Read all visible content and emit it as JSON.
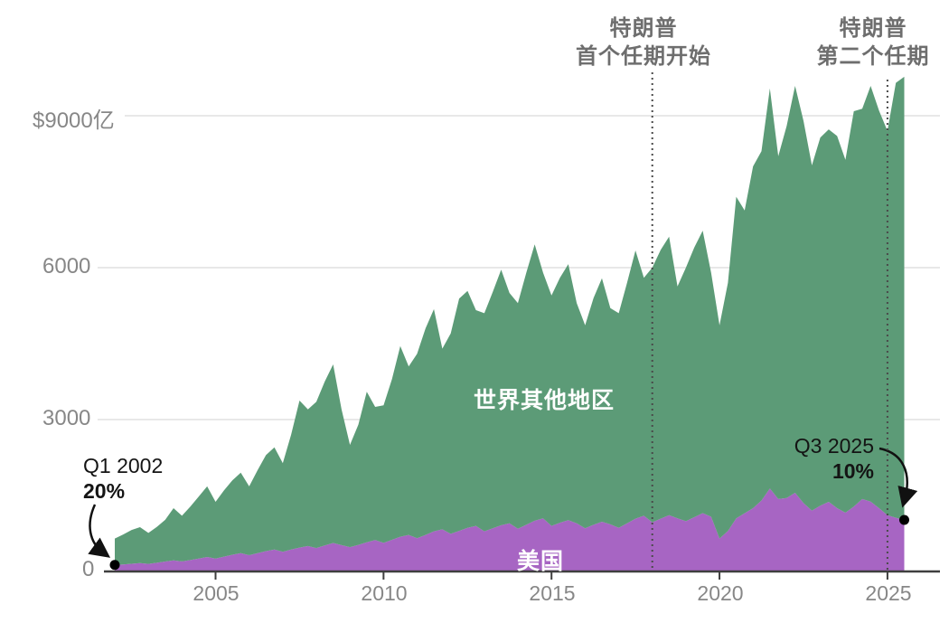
{
  "chart_data": {
    "type": "area",
    "stacked": true,
    "unit": "亿美元",
    "x_start_year": 2002,
    "x_start_quarter": 1,
    "x_step_years": 0.25,
    "x_axis": {
      "tick_labels": [
        "2005",
        "2010",
        "2015",
        "2020",
        "2025"
      ],
      "tick_years": [
        2005,
        2010,
        2015,
        2020,
        2025
      ]
    },
    "y_axis": {
      "tick_labels": [
        "$9000亿",
        "6000",
        "3000",
        "0"
      ],
      "tick_values": [
        9000,
        6000,
        3000,
        0
      ],
      "ylim": [
        0,
        9900
      ],
      "grid": "horizontal"
    },
    "legend": "in-chart white labels",
    "series": [
      {
        "name": "美国",
        "color": "#a765c3",
        "values": [
          130,
          140,
          152,
          165,
          150,
          172,
          196,
          220,
          198,
          225,
          255,
          285,
          255,
          292,
          330,
          362,
          322,
          362,
          402,
          432,
          390,
          432,
          472,
          502,
          462,
          512,
          562,
          520,
          480,
          525,
          575,
          620,
          565,
          625,
          685,
          722,
          655,
          722,
          792,
          832,
          742,
          802,
          862,
          900,
          792,
          852,
          912,
          950,
          842,
          922,
          1002,
          1050,
          900,
          962,
          1012,
          950,
          852,
          922,
          982,
          930,
          862,
          952,
          1042,
          1100,
          972,
          1042,
          1112,
          1050,
          992,
          1072,
          1152,
          1080,
          650,
          800,
          1050,
          1150,
          1250,
          1400,
          1640,
          1430,
          1450,
          1554,
          1350,
          1200,
          1300,
          1375,
          1250,
          1160,
          1280,
          1430,
          1380,
          1250,
          1110,
          1060,
          1018
        ]
      },
      {
        "name": "世界其他地区",
        "color": "#5c9b77",
        "note": "drawn as the band between 美国 and the stacked total below",
        "stacked_top_values": [
          650,
          730,
          820,
          875,
          760,
          880,
          1020,
          1250,
          1100,
          1280,
          1480,
          1680,
          1375,
          1600,
          1800,
          1950,
          1680,
          2000,
          2300,
          2450,
          2140,
          2700,
          3375,
          3200,
          3350,
          3750,
          4090,
          3200,
          2500,
          2900,
          3550,
          3250,
          3280,
          3800,
          4450,
          4050,
          4300,
          4800,
          5180,
          4400,
          4700,
          5390,
          5540,
          5160,
          5100,
          5520,
          5960,
          5500,
          5300,
          5900,
          6460,
          5900,
          5450,
          5800,
          6070,
          5300,
          4860,
          5400,
          5790,
          5200,
          5100,
          5700,
          6340,
          5800,
          6000,
          6350,
          6610,
          5630,
          6000,
          6400,
          6730,
          5900,
          4860,
          5700,
          7400,
          7130,
          8000,
          8300,
          9540,
          8200,
          8800,
          9590,
          8900,
          8020,
          8570,
          8730,
          8600,
          8130,
          9090,
          9140,
          9590,
          9100,
          8700,
          9650,
          9770
        ]
      }
    ]
  },
  "annotations": {
    "first_term": {
      "line1": "特朗普",
      "line2": "首个任期开始",
      "year": 2018,
      "style": "dotted-vertical-line"
    },
    "second_term": {
      "line1": "特朗普",
      "line2": "第二个任期",
      "year": 2025,
      "style": "dotted-vertical-line"
    },
    "start_callout": {
      "period": "Q1 2002",
      "share": "20%"
    },
    "end_callout": {
      "period": "Q3 2025",
      "share": "10%"
    }
  },
  "colors": {
    "us_area": "#a765c3",
    "world_area": "#5c9b77",
    "axis_text": "#878787",
    "annotation_text": "#6e6e6e",
    "callout_text": "#141414",
    "gridline": "#e1e1e1",
    "axis_line": "#3f3f3f",
    "dotted_line": "#4a4a4a",
    "marker_dot": "#000000"
  }
}
